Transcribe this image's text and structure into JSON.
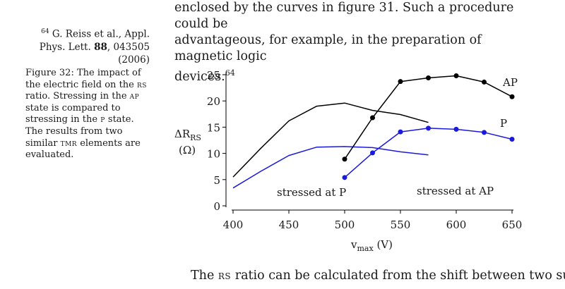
{
  "body_text_top": {
    "line1": "enclosed by the curves in figure 31. Such a procedure could be",
    "line2": "advantageous, for example, in the preparation of magnetic logic",
    "line3_text": "devices.",
    "line3_ref": "64"
  },
  "sidenote": {
    "number": "64",
    "authors": "G. Reiss et al., Appl.",
    "journal": "Phys. Lett.",
    "volume": "88",
    "pages_year": ", 043505 (2006)"
  },
  "caption": {
    "part1": "Figure 32: The impact of the electric field on the ",
    "sc1": "rs",
    "part2": " ratio. Stressing in the ",
    "sc2": "ap",
    "part3": " state is compared to stressing in the ",
    "sc3": "p",
    "part4": " state. The results from two similar ",
    "sc4": "tmr",
    "part5": " elements are evaluated."
  },
  "body_text_bottom": {
    "part1": "The ",
    "sc1": "rs",
    "part2": " ratio can be calculated from the shift between two sub-"
  },
  "chart_data": {
    "type": "line",
    "title": "",
    "xlabel": "v",
    "xlabel_sub": "max",
    "xlabel_unit": " (V)",
    "ylabel_main": "ΔR",
    "ylabel_sub": "RS",
    "ylabel_unit": "(Ω)",
    "xlim": [
      400,
      650
    ],
    "ylim": [
      0,
      25
    ],
    "xticks": [
      400,
      450,
      500,
      550,
      600,
      650
    ],
    "yticks": [
      0,
      5,
      10,
      15,
      20,
      25
    ],
    "xtick_labels": [
      "400",
      "450",
      "500",
      "550",
      "600",
      "650"
    ],
    "ytick_labels": [
      "0",
      "5",
      "10",
      "15",
      "20",
      "25"
    ],
    "series": [
      {
        "name": "stressed at P (black)",
        "color": "#000000",
        "markers": false,
        "x": [
          400,
          425,
          450,
          475,
          500,
          525,
          550,
          575
        ],
        "y": [
          5.5,
          11.0,
          16.2,
          19.0,
          19.6,
          18.2,
          17.4,
          15.9
        ]
      },
      {
        "name": "stressed at P (blue)",
        "color": "#1a1adc",
        "markers": false,
        "x": [
          400,
          425,
          450,
          475,
          500,
          525,
          550,
          575
        ],
        "y": [
          3.4,
          6.6,
          9.6,
          11.2,
          11.3,
          11.1,
          10.3,
          9.7
        ]
      },
      {
        "name": "AP",
        "color": "#000000",
        "markers": true,
        "x": [
          500,
          525,
          550,
          575,
          600,
          625,
          650
        ],
        "y": [
          8.9,
          16.8,
          23.7,
          24.4,
          24.8,
          23.6,
          20.8
        ]
      },
      {
        "name": "P",
        "color": "#1a1adc",
        "markers": true,
        "x": [
          500,
          525,
          550,
          575,
          600,
          625,
          650
        ],
        "y": [
          5.4,
          10.1,
          14.1,
          14.8,
          14.6,
          14.0,
          12.7
        ]
      }
    ],
    "annotations": [
      "stressed at P",
      "stressed at AP",
      "AP",
      "P"
    ]
  }
}
